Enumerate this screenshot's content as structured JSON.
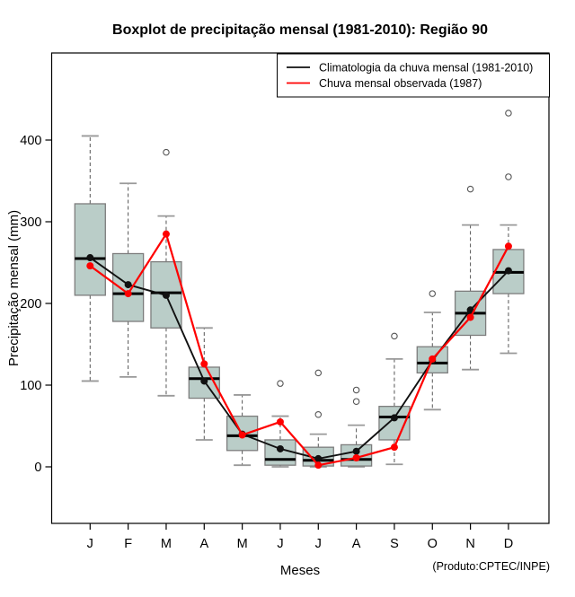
{
  "title": "Boxplot de precipitação mensal (1981-2010): Região 90",
  "footnote": "(Produto:CPTEC/INPE)",
  "chart_data": {
    "type": "boxplot",
    "title": "Boxplot de precipitação mensal (1981-2010): Região 90",
    "xlabel": "Meses",
    "ylabel": "Precipitação mensal (mm)",
    "categories": [
      "J",
      "F",
      "M",
      "A",
      "M",
      "J",
      "J",
      "A",
      "S",
      "O",
      "N",
      "D"
    ],
    "month_slugs": [
      "jan",
      "feb",
      "mar",
      "apr",
      "may",
      "jun",
      "jul",
      "aug",
      "sep",
      "oct",
      "nov",
      "dec"
    ],
    "yticks": [
      0,
      100,
      200,
      300,
      400
    ],
    "ylim": [
      -69,
      507
    ],
    "grid": false,
    "legend_position": "top-right-inside",
    "boxes": [
      {
        "label": "J",
        "whisker_low": 105,
        "q1": 210,
        "median": 255,
        "q3": 322,
        "whisker_high": 405,
        "outliers": []
      },
      {
        "label": "F",
        "whisker_low": 110,
        "q1": 178,
        "median": 212,
        "q3": 261,
        "whisker_high": 347,
        "outliers": []
      },
      {
        "label": "M",
        "whisker_low": 87,
        "q1": 170,
        "median": 213,
        "q3": 251,
        "whisker_high": 307,
        "outliers": [
          385
        ]
      },
      {
        "label": "A",
        "whisker_low": 33,
        "q1": 84,
        "median": 108,
        "q3": 122,
        "whisker_high": 170,
        "outliers": []
      },
      {
        "label": "M",
        "whisker_low": 2,
        "q1": 20,
        "median": 38,
        "q3": 62,
        "whisker_high": 88,
        "outliers": []
      },
      {
        "label": "J",
        "whisker_low": 0,
        "q1": 2,
        "median": 9,
        "q3": 33,
        "whisker_high": 62,
        "outliers": [
          102
        ]
      },
      {
        "label": "J",
        "whisker_low": 0,
        "q1": 1,
        "median": 8,
        "q3": 24,
        "whisker_high": 40,
        "outliers": [
          64,
          115
        ]
      },
      {
        "label": "A",
        "whisker_low": 0,
        "q1": 1,
        "median": 9,
        "q3": 27,
        "whisker_high": 51,
        "outliers": [
          80,
          94
        ]
      },
      {
        "label": "S",
        "whisker_low": 3,
        "q1": 33,
        "median": 61,
        "q3": 74,
        "whisker_high": 132,
        "outliers": [
          160
        ]
      },
      {
        "label": "O",
        "whisker_low": 70,
        "q1": 115,
        "median": 127,
        "q3": 147,
        "whisker_high": 189,
        "outliers": [
          212
        ]
      },
      {
        "label": "N",
        "whisker_low": 119,
        "q1": 161,
        "median": 188,
        "q3": 215,
        "whisker_high": 296,
        "outliers": [
          340
        ]
      },
      {
        "label": "D",
        "whisker_low": 139,
        "q1": 212,
        "median": 238,
        "q3": 266,
        "whisker_high": 296,
        "outliers": [
          355,
          433
        ]
      }
    ],
    "series": [
      {
        "name": "Climatologia da chuva mensal (1981-2010)",
        "color": "#111111",
        "values": [
          256,
          223,
          210,
          105,
          40,
          22,
          10,
          19,
          60,
          130,
          192,
          240
        ]
      },
      {
        "name": "Chuva mensal observada (1987)",
        "color": "#ff0000",
        "values": [
          246,
          212,
          285,
          126,
          39,
          55,
          2,
          11,
          24,
          132,
          183,
          270
        ]
      }
    ],
    "colors": {
      "box_fill": "#bacdc8",
      "box_edge": "#7d7d7d",
      "whisker": "#555555",
      "cap": "#999999",
      "median": "#000000",
      "outlier": "#555555",
      "climatology": "#111111",
      "observed": "#ff0000"
    }
  }
}
